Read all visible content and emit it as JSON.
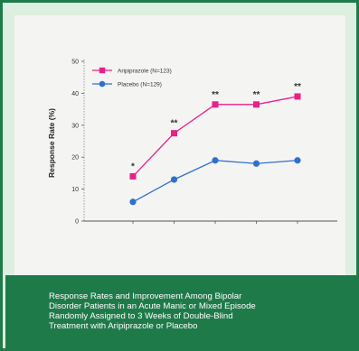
{
  "caption": "Response Rates and Improvement Among Bipolar\nDisorder Patients in an Acute Manic or Mixed Episode\nRandomly Assigned to 3 Weeks of Double-Blind\nTreatment with Aripiprazole or Placebo",
  "chart_data": {
    "type": "line",
    "title": "",
    "xlabel": "",
    "ylabel": "Response Rate (%)",
    "ylim": [
      0,
      50
    ],
    "yticks": [
      "0",
      "10",
      "20",
      "30",
      "40",
      "50"
    ],
    "x": [
      1,
      2,
      3,
      4,
      5
    ],
    "grid": false,
    "legend_position": "top-left",
    "series": [
      {
        "name": "Aripiprazole (N=123)",
        "color": "#e8208a",
        "marker": "square",
        "values": [
          14,
          27.5,
          36.5,
          36.5,
          39
        ],
        "significance": [
          "*",
          "**",
          "**",
          "**",
          "**"
        ]
      },
      {
        "name": "Placebo (N=129)",
        "color": "#2f6fd0",
        "marker": "circle",
        "values": [
          6,
          13,
          19,
          18,
          19
        ]
      }
    ]
  }
}
